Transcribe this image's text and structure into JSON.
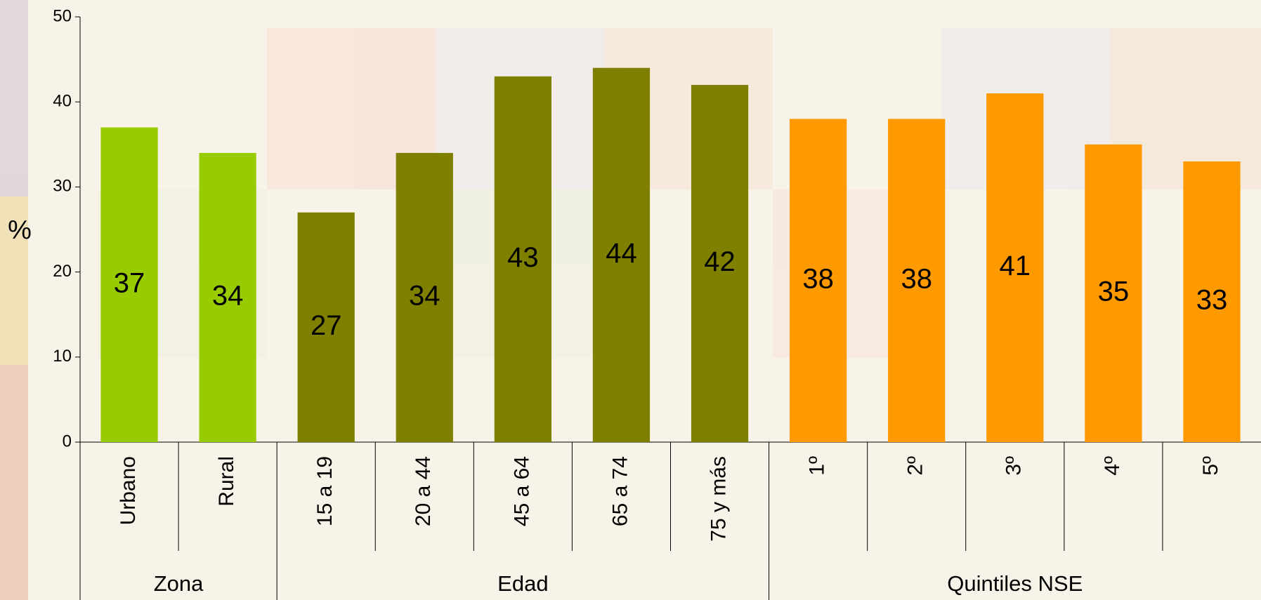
{
  "chart_data": {
    "type": "bar",
    "y_label": "%",
    "ylim": [
      0,
      50
    ],
    "yticks": [
      0,
      10,
      20,
      30,
      40,
      50
    ],
    "grid": false,
    "groups": [
      {
        "name": "Zona",
        "color": "#99cc00",
        "categories": [
          "Urbano",
          "Rural"
        ],
        "values": [
          37,
          34
        ]
      },
      {
        "name": "Edad",
        "color": "#808000",
        "categories": [
          "15 a 19",
          "20 a 44",
          "45 a 64",
          "65 a 74",
          "75 y más"
        ],
        "values": [
          27,
          34,
          43,
          44,
          42
        ]
      },
      {
        "name": "Quintiles NSE",
        "color": "#ff9900",
        "categories": [
          "1º",
          "2º",
          "3º",
          "4º",
          "5º"
        ],
        "values": [
          38,
          38,
          41,
          35,
          33
        ]
      }
    ]
  }
}
